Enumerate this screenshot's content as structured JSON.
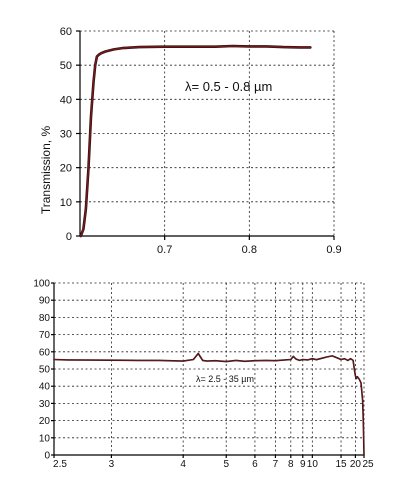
{
  "chart_data": [
    {
      "type": "line",
      "ylabel": "Transmission, %",
      "annotation": "λ= 0.5 - 0.8 µm",
      "xscale": "linear",
      "xlim": [
        0.6,
        0.9
      ],
      "ylim": [
        0,
        60
      ],
      "xticks": [
        0.7,
        0.8,
        0.9
      ],
      "yticks": [
        0,
        10,
        20,
        30,
        40,
        50,
        60
      ],
      "grid": true,
      "colors": {
        "line": "#7a1518",
        "axis": "#000000"
      },
      "series": [
        {
          "x": [
            0.601,
            0.604,
            0.607,
            0.61,
            0.613,
            0.616,
            0.618,
            0.62,
            0.622,
            0.625,
            0.63,
            0.64,
            0.65,
            0.67,
            0.7,
            0.73,
            0.76,
            0.78,
            0.8,
            0.82,
            0.84,
            0.86,
            0.872
          ],
          "y": [
            0,
            2,
            8,
            20,
            35,
            45,
            50,
            52.5,
            53,
            53.5,
            54,
            54.6,
            55,
            55.3,
            55.4,
            55.4,
            55.4,
            55.6,
            55.5,
            55.5,
            55.3,
            55.2,
            55.2
          ]
        }
      ]
    },
    {
      "type": "line",
      "annotation": "λ= 2.5 - 35 µm",
      "xscale": "reciprocal",
      "xlim": [
        2.5,
        25
      ],
      "ylim": [
        0,
        100
      ],
      "xticks": [
        2.5,
        3,
        4,
        5,
        6,
        7,
        8,
        9,
        10,
        15,
        20,
        25
      ],
      "yticks": [
        0,
        10,
        20,
        30,
        40,
        50,
        60,
        70,
        80,
        90,
        100
      ],
      "grid": true,
      "colors": {
        "line": "#7a1518",
        "axis": "#000000"
      },
      "series": [
        {
          "x": [
            2.5,
            2.6,
            2.8,
            3.0,
            3.3,
            3.6,
            4.0,
            4.2,
            4.3,
            4.35,
            4.4,
            4.5,
            4.7,
            5.0,
            5.3,
            5.6,
            6.0,
            6.5,
            7.0,
            7.5,
            8.0,
            8.2,
            8.4,
            8.7,
            9.0,
            9.5,
            10.0,
            10.5,
            11.0,
            12.0,
            13.0,
            14.0,
            15.0,
            16.0,
            17.0,
            18.0,
            19.0,
            19.5,
            20.0,
            20.5,
            21.0,
            22.0,
            23.0,
            24.0,
            24.5,
            25.0
          ],
          "y": [
            55.5,
            55.3,
            55.2,
            55.1,
            55.0,
            55.0,
            54.6,
            55.5,
            59,
            57,
            55,
            54.6,
            54.8,
            54.3,
            55.0,
            54.5,
            54.8,
            55.0,
            54.8,
            55.2,
            55.5,
            57.3,
            55.8,
            55.0,
            55.5,
            55.3,
            56.0,
            55.4,
            56.0,
            57.0,
            57.6,
            56.5,
            55.5,
            56.0,
            55.0,
            56.0,
            55.0,
            50.0,
            46.0,
            44.5,
            45.5,
            44.0,
            42.0,
            32.0,
            20.0,
            0.0
          ]
        }
      ]
    }
  ]
}
